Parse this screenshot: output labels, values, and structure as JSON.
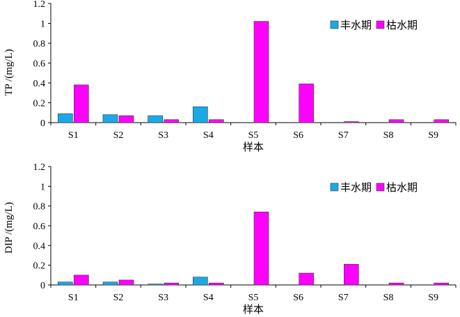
{
  "legend": {
    "wet_season": "丰水期",
    "dry_season": "枯水期"
  },
  "colors": {
    "wet_season": "#1aa9e6",
    "dry_season": "#ff00ff",
    "bar_stroke": "#333333",
    "axis": "#000000"
  },
  "chart_data": [
    {
      "type": "bar",
      "ylabel": "TP /(mg/L)",
      "xlabel": "样本",
      "ylim": [
        0,
        1.2
      ],
      "yticks": [
        "0",
        "0.2",
        "0.4",
        "0.6",
        "0.8",
        "1",
        "1.2"
      ],
      "categories": [
        "S1",
        "S2",
        "S3",
        "S4",
        "S5",
        "S6",
        "S7",
        "S8",
        "S9"
      ],
      "series": [
        {
          "name": "丰水期",
          "values": [
            0.09,
            0.08,
            0.07,
            0.16,
            0,
            0,
            0,
            0,
            0
          ]
        },
        {
          "name": "枯水期",
          "values": [
            0.38,
            0.07,
            0.03,
            0.03,
            1.02,
            0.39,
            0.01,
            0.03,
            0.03
          ]
        }
      ],
      "legend_position": "top-right",
      "grid": false
    },
    {
      "type": "bar",
      "ylabel": "DIP /(mg/L)",
      "xlabel": "样本",
      "ylim": [
        0,
        1.2
      ],
      "yticks": [
        "0",
        "0.2",
        "0.4",
        "0.6",
        "0.8",
        "1",
        "1.2"
      ],
      "categories": [
        "S1",
        "S2",
        "S3",
        "S4",
        "S5",
        "S6",
        "S7",
        "S8",
        "S9"
      ],
      "series": [
        {
          "name": "丰水期",
          "values": [
            0.03,
            0.03,
            0.01,
            0.08,
            0,
            0,
            0,
            0,
            0
          ]
        },
        {
          "name": "枯水期",
          "values": [
            0.1,
            0.05,
            0.02,
            0.02,
            0.74,
            0.12,
            0.21,
            0.02,
            0.02
          ]
        }
      ],
      "legend_position": "top-right",
      "grid": false
    }
  ]
}
